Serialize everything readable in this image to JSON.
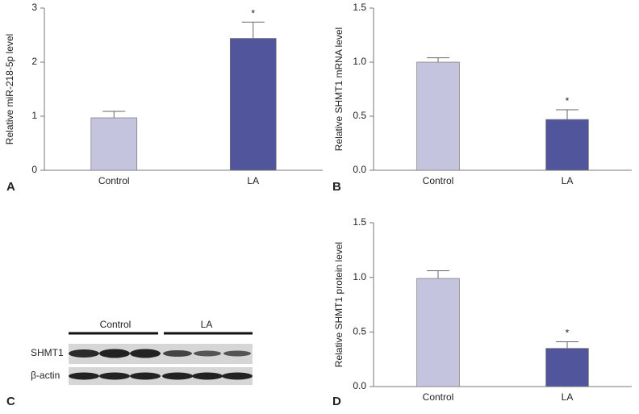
{
  "chart_data": [
    {
      "type": "bar",
      "panel_label": "A",
      "ylabel": "Relative miR-218-5p level",
      "categories": [
        "Control",
        "LA"
      ],
      "values": [
        0.97,
        2.44
      ],
      "errors": [
        0.12,
        0.3
      ],
      "colors": [
        "#c5c4de",
        "#50559c"
      ],
      "significance": [
        null,
        "*"
      ],
      "ylim": [
        0,
        3
      ],
      "yticks": [
        0,
        1,
        2,
        3
      ]
    },
    {
      "type": "bar",
      "panel_label": "B",
      "ylabel": "Relative SHMT1 mRNA level",
      "categories": [
        "Control",
        "LA"
      ],
      "values": [
        1.0,
        0.47
      ],
      "errors": [
        0.04,
        0.09
      ],
      "colors": [
        "#c5c4de",
        "#50559c"
      ],
      "significance": [
        null,
        "*"
      ],
      "ylim": [
        0,
        1.5
      ],
      "yticks": [
        {
          "value": 0,
          "label": "0.0"
        },
        0.5,
        {
          "value": 1,
          "label": "1.0"
        },
        1.5
      ]
    },
    {
      "type": "bar",
      "panel_label": "D",
      "ylabel": "Relative SHMT1 protein level",
      "categories": [
        "Control",
        "LA"
      ],
      "values": [
        0.99,
        0.35
      ],
      "errors": [
        0.07,
        0.06
      ],
      "colors": [
        "#c5c4de",
        "#50559c"
      ],
      "significance": [
        null,
        "*"
      ],
      "ylim": [
        0,
        1.5
      ],
      "yticks": [
        {
          "value": 0,
          "label": "0.0"
        },
        0.5,
        {
          "value": 1,
          "label": "1.0"
        },
        1.5
      ]
    }
  ],
  "blot": {
    "panel_label": "C",
    "groups": [
      "Control",
      "LA"
    ],
    "rows": [
      "SHMT1",
      "β-actin"
    ]
  }
}
